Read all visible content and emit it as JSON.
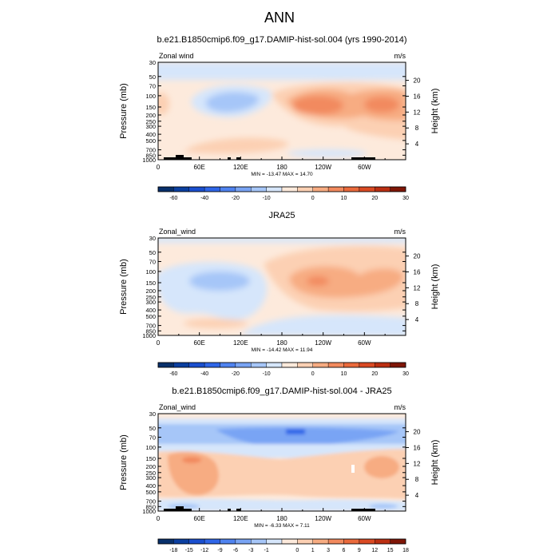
{
  "figure": {
    "title": "ANN"
  },
  "chart_data": [
    {
      "type": "heatmap",
      "title": "b.e21.B1850cmip6.f09_g17.DAMIP-hist-sol.004 (yrs 1990-2014)",
      "field_label": "Zonal wind",
      "units": "m/s",
      "ylabel": "Pressure (mb)",
      "ylabel_right": "Height (km)",
      "x_ticks": [
        "0",
        "60E",
        "120E",
        "180",
        "120W",
        "60W"
      ],
      "x_tick_lon": [
        0,
        60,
        120,
        180,
        240,
        300
      ],
      "xlim": [
        0,
        360
      ],
      "y_ticks": [
        "30",
        "50",
        "70",
        "100",
        "150",
        "200",
        "250",
        "300",
        "400",
        "500",
        "700",
        "850",
        "1000"
      ],
      "y_tick_p": [
        30,
        50,
        70,
        100,
        150,
        200,
        250,
        300,
        400,
        500,
        700,
        850,
        1000
      ],
      "ylim": [
        1000,
        30
      ],
      "log_scale": true,
      "height_ticks": [
        "4",
        "8",
        "12",
        "16",
        "20"
      ],
      "height_km": [
        4,
        8,
        12,
        16,
        20
      ],
      "stats": "MIN = -13.47  MAX =  14.70",
      "colorbar": {
        "levels": [
          "-60",
          "-40",
          "-20",
          "-10",
          "0",
          "10",
          "20",
          "30"
        ],
        "colors": [
          "#08306b",
          "#0b3fa0",
          "#1a4fcf",
          "#2f66e8",
          "#4f83f0",
          "#79a4f4",
          "#a6c6f8",
          "#d6e6fb",
          "#fdeadc",
          "#fcd0b3",
          "#f7ac82",
          "#f28a5e",
          "#ea6a3c",
          "#da4a23",
          "#bb2f12",
          "#7f1607"
        ]
      },
      "features": [
        {
          "name": "upper-level easterlies",
          "lon": [
            0,
            360
          ],
          "p": [
            30,
            90
          ],
          "level": "0 to -10"
        },
        {
          "name": "eastern hemisphere easterly core",
          "lon_center": 105,
          "p_center": 150,
          "level": "-10 to -20"
        },
        {
          "name": "Pacific westerly jet",
          "lon_center": 225,
          "p_center": 150,
          "level": "10 to 20"
        },
        {
          "name": "Atlantic westerly jet",
          "lon_center": 320,
          "p_center": 150,
          "level": "10 to 20"
        },
        {
          "name": "low-level westerlies",
          "lon_center": 100,
          "p_center": 700,
          "level": "0 to 10"
        }
      ],
      "show_topography": true
    },
    {
      "type": "heatmap",
      "title": "JRA25",
      "field_label": "Zonal_wind",
      "units": "m/s",
      "ylabel": "Pressure (mb)",
      "ylabel_right": "Height (km)",
      "x_ticks": [
        "0",
        "60E",
        "120E",
        "180",
        "120W",
        "60W"
      ],
      "x_tick_lon": [
        0,
        60,
        120,
        180,
        240,
        300
      ],
      "xlim": [
        0,
        360
      ],
      "y_ticks": [
        "30",
        "50",
        "70",
        "100",
        "150",
        "200",
        "250",
        "300",
        "400",
        "500",
        "700",
        "850",
        "1000"
      ],
      "y_tick_p": [
        30,
        50,
        70,
        100,
        150,
        200,
        250,
        300,
        400,
        500,
        700,
        850,
        1000
      ],
      "ylim": [
        1000,
        30
      ],
      "log_scale": true,
      "height_ticks": [
        "4",
        "8",
        "12",
        "16",
        "20"
      ],
      "height_km": [
        4,
        8,
        12,
        16,
        20
      ],
      "stats": "MIN = -14.42  MAX =  11.94",
      "colorbar": {
        "levels": [
          "-60",
          "-40",
          "-20",
          "-10",
          "0",
          "10",
          "20",
          "30"
        ],
        "colors": [
          "#08306b",
          "#0b3fa0",
          "#1a4fcf",
          "#2f66e8",
          "#4f83f0",
          "#79a4f4",
          "#a6c6f8",
          "#d6e6fb",
          "#fdeadc",
          "#fcd0b3",
          "#f7ac82",
          "#f28a5e",
          "#ea6a3c",
          "#da4a23",
          "#bb2f12",
          "#7f1607"
        ]
      },
      "features": [
        {
          "name": "eastern hemisphere easterly core",
          "lon_center": 80,
          "p_center": 150,
          "level": "-10 to -20"
        },
        {
          "name": "Pacific westerly jet",
          "lon_center": 225,
          "p_center": 150,
          "level": "10 to 20"
        },
        {
          "name": "Atlantic westerly jet",
          "lon_center": 320,
          "p_center": 130,
          "level": "10"
        },
        {
          "name": "low-level easterlies",
          "lon_center": 260,
          "p_center": 600,
          "level": "0 to -10"
        }
      ],
      "show_topography": false
    },
    {
      "type": "heatmap",
      "title": "b.e21.B1850cmip6.f09_g17.DAMIP-hist-sol.004 - JRA25",
      "field_label": "Zonal_wind",
      "units": "m/s",
      "ylabel": "Pressure (mb)",
      "ylabel_right": "Height (km)",
      "x_ticks": [
        "0",
        "60E",
        "120E",
        "180",
        "120W",
        "60W"
      ],
      "x_tick_lon": [
        0,
        60,
        120,
        180,
        240,
        300
      ],
      "xlim": [
        0,
        360
      ],
      "y_ticks": [
        "30",
        "50",
        "70",
        "100",
        "150",
        "200",
        "250",
        "300",
        "400",
        "500",
        "700",
        "850",
        "1000"
      ],
      "y_tick_p": [
        30,
        50,
        70,
        100,
        150,
        200,
        250,
        300,
        400,
        500,
        700,
        850,
        1000
      ],
      "ylim": [
        1000,
        30
      ],
      "log_scale": true,
      "height_ticks": [
        "4",
        "8",
        "12",
        "16",
        "20"
      ],
      "height_km": [
        4,
        8,
        12,
        16,
        20
      ],
      "stats": "MIN =  -6.33  MAX =   7.11",
      "colorbar": {
        "levels": [
          "-18",
          "-15",
          "-12",
          "-9",
          "-6",
          "-3",
          "-1",
          "0",
          "1",
          "3",
          "6",
          "9",
          "12",
          "15",
          "18"
        ],
        "colors": [
          "#08306b",
          "#0b3fa0",
          "#1a4fcf",
          "#2f66e8",
          "#4f83f0",
          "#79a4f4",
          "#a6c6f8",
          "#d6e6fb",
          "#fdeadc",
          "#fcd0b3",
          "#f7ac82",
          "#f28a5e",
          "#ea6a3c",
          "#da4a23",
          "#bb2f12",
          "#7f1607"
        ]
      },
      "features": [
        {
          "name": "upper-level easterly bias band",
          "lon": [
            0,
            360
          ],
          "p": [
            40,
            110
          ],
          "level": "-3 to -6"
        },
        {
          "name": "strong easterly bias",
          "lon_center": 175,
          "p_center": 60,
          "level": "-6 to -9"
        },
        {
          "name": "mid-level westerly bias",
          "lon": [
            0,
            360
          ],
          "p": [
            110,
            650
          ],
          "level": "1 to 3"
        },
        {
          "name": "lower-level easterly bias",
          "lon": [
            0,
            360
          ],
          "p": [
            700,
            1000
          ],
          "level": "-1 to -3"
        }
      ],
      "show_topography": true
    }
  ]
}
